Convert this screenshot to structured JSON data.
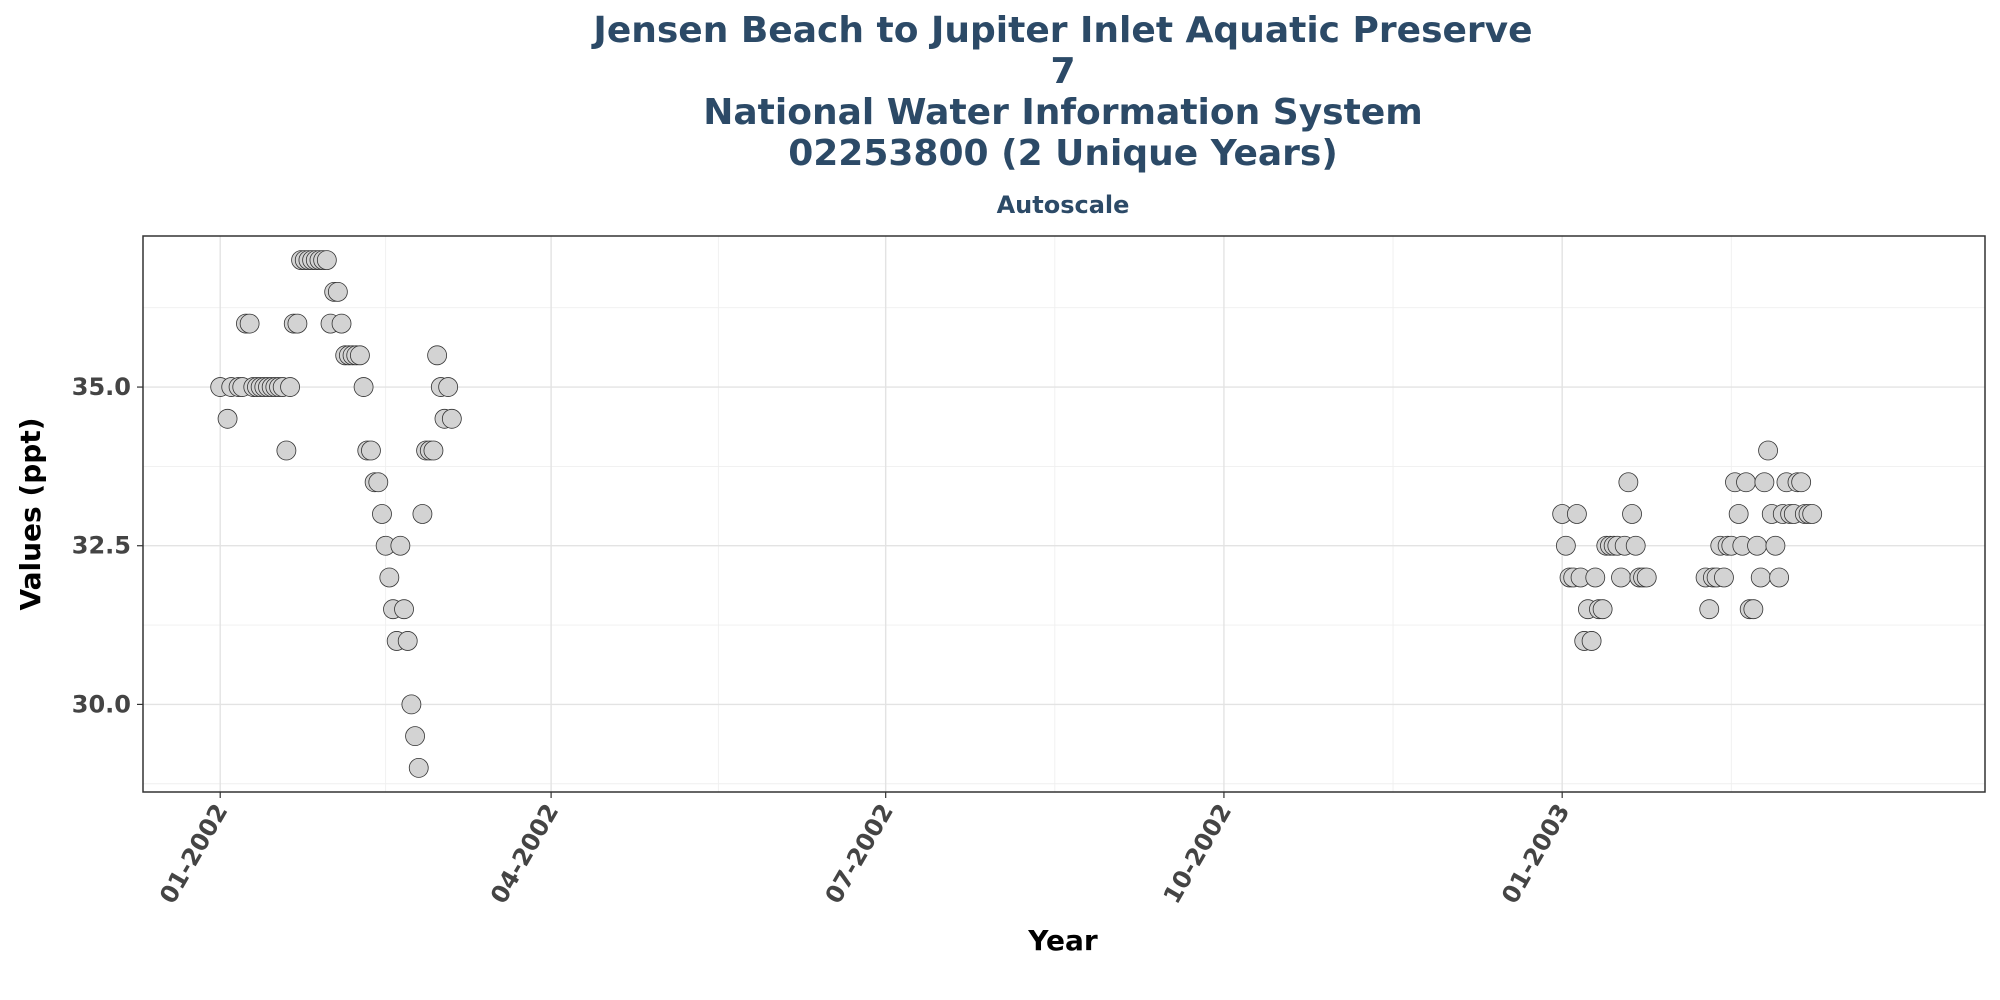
{
  "chart_data": {
    "type": "scatter",
    "title_lines": [
      "Jensen Beach to Jupiter Inlet Aquatic Preserve",
      "7",
      "National Water Information System",
      "02253800 (2 Unique Years)"
    ],
    "subtitle": "Autoscale",
    "xlabel": "Year",
    "ylabel": "Values (ppt)",
    "x_ticks": [
      "2002-01-01",
      "2002-04-01",
      "2002-07-01",
      "2002-10-01",
      "2003-01-01"
    ],
    "x_tick_labels": [
      "01-2002",
      "04-2002",
      "07-2002",
      "10-2002",
      "01-2003"
    ],
    "y_ticks": [
      30.0,
      32.5,
      35.0
    ],
    "y_tick_labels": [
      "30.0",
      "32.5",
      "35.0"
    ],
    "xlim": [
      "2001-12-11",
      "2003-04-26"
    ],
    "ylim": [
      28.62,
      37.38
    ],
    "grid": true,
    "marker_fill": "#d3d3d3",
    "marker_edge": "#333333",
    "points": [
      {
        "x": "2002-01-01",
        "y": 35.0
      },
      {
        "x": "2002-01-03",
        "y": 34.5
      },
      {
        "x": "2002-01-04",
        "y": 35.0
      },
      {
        "x": "2002-01-06",
        "y": 35.0
      },
      {
        "x": "2002-01-07",
        "y": 35.0
      },
      {
        "x": "2002-01-08",
        "y": 36.0
      },
      {
        "x": "2002-01-09",
        "y": 36.0
      },
      {
        "x": "2002-01-10",
        "y": 35.0
      },
      {
        "x": "2002-01-11",
        "y": 35.0
      },
      {
        "x": "2002-01-12",
        "y": 35.0
      },
      {
        "x": "2002-01-13",
        "y": 35.0
      },
      {
        "x": "2002-01-14",
        "y": 35.0
      },
      {
        "x": "2002-01-15",
        "y": 35.0
      },
      {
        "x": "2002-01-16",
        "y": 35.0
      },
      {
        "x": "2002-01-17",
        "y": 35.0
      },
      {
        "x": "2002-01-18",
        "y": 35.0
      },
      {
        "x": "2002-01-19",
        "y": 34.0
      },
      {
        "x": "2002-01-20",
        "y": 35.0
      },
      {
        "x": "2002-01-21",
        "y": 36.0
      },
      {
        "x": "2002-01-22",
        "y": 36.0
      },
      {
        "x": "2002-01-23",
        "y": 37.0
      },
      {
        "x": "2002-01-24",
        "y": 37.0
      },
      {
        "x": "2002-01-25",
        "y": 37.0
      },
      {
        "x": "2002-01-26",
        "y": 37.0
      },
      {
        "x": "2002-01-27",
        "y": 37.0
      },
      {
        "x": "2002-01-28",
        "y": 37.0
      },
      {
        "x": "2002-01-29",
        "y": 37.0
      },
      {
        "x": "2002-01-30",
        "y": 37.0
      },
      {
        "x": "2002-01-31",
        "y": 36.0
      },
      {
        "x": "2002-02-01",
        "y": 36.5
      },
      {
        "x": "2002-02-02",
        "y": 36.5
      },
      {
        "x": "2002-02-03",
        "y": 36.0
      },
      {
        "x": "2002-02-04",
        "y": 35.5
      },
      {
        "x": "2002-02-05",
        "y": 35.5
      },
      {
        "x": "2002-02-06",
        "y": 35.5
      },
      {
        "x": "2002-02-07",
        "y": 35.5
      },
      {
        "x": "2002-02-08",
        "y": 35.5
      },
      {
        "x": "2002-02-09",
        "y": 35.0
      },
      {
        "x": "2002-02-10",
        "y": 34.0
      },
      {
        "x": "2002-02-11",
        "y": 34.0
      },
      {
        "x": "2002-02-12",
        "y": 33.5
      },
      {
        "x": "2002-02-13",
        "y": 33.5
      },
      {
        "x": "2002-02-14",
        "y": 33.0
      },
      {
        "x": "2002-02-15",
        "y": 32.5
      },
      {
        "x": "2002-02-16",
        "y": 32.0
      },
      {
        "x": "2002-02-17",
        "y": 31.5
      },
      {
        "x": "2002-02-18",
        "y": 31.0
      },
      {
        "x": "2002-02-19",
        "y": 32.5
      },
      {
        "x": "2002-02-20",
        "y": 31.5
      },
      {
        "x": "2002-02-21",
        "y": 31.0
      },
      {
        "x": "2002-02-22",
        "y": 30.0
      },
      {
        "x": "2002-02-23",
        "y": 29.5
      },
      {
        "x": "2002-02-24",
        "y": 29.0
      },
      {
        "x": "2002-02-25",
        "y": 33.0
      },
      {
        "x": "2002-02-26",
        "y": 34.0
      },
      {
        "x": "2002-02-27",
        "y": 34.0
      },
      {
        "x": "2002-02-28",
        "y": 34.0
      },
      {
        "x": "2002-03-01",
        "y": 35.5
      },
      {
        "x": "2002-03-02",
        "y": 35.0
      },
      {
        "x": "2002-03-03",
        "y": 34.5
      },
      {
        "x": "2002-03-04",
        "y": 35.0
      },
      {
        "x": "2002-03-05",
        "y": 34.5
      },
      {
        "x": "2003-01-01",
        "y": 33.0
      },
      {
        "x": "2003-01-02",
        "y": 32.5
      },
      {
        "x": "2003-01-03",
        "y": 32.0
      },
      {
        "x": "2003-01-04",
        "y": 32.0
      },
      {
        "x": "2003-01-05",
        "y": 33.0
      },
      {
        "x": "2003-01-06",
        "y": 32.0
      },
      {
        "x": "2003-01-07",
        "y": 31.0
      },
      {
        "x": "2003-01-08",
        "y": 31.5
      },
      {
        "x": "2003-01-09",
        "y": 31.0
      },
      {
        "x": "2003-01-10",
        "y": 32.0
      },
      {
        "x": "2003-01-11",
        "y": 31.5
      },
      {
        "x": "2003-01-12",
        "y": 31.5
      },
      {
        "x": "2003-01-13",
        "y": 32.5
      },
      {
        "x": "2003-01-14",
        "y": 32.5
      },
      {
        "x": "2003-01-15",
        "y": 32.5
      },
      {
        "x": "2003-01-16",
        "y": 32.5
      },
      {
        "x": "2003-01-17",
        "y": 32.0
      },
      {
        "x": "2003-01-18",
        "y": 32.5
      },
      {
        "x": "2003-01-19",
        "y": 33.5
      },
      {
        "x": "2003-01-20",
        "y": 33.0
      },
      {
        "x": "2003-01-21",
        "y": 32.5
      },
      {
        "x": "2003-01-22",
        "y": 32.0
      },
      {
        "x": "2003-01-23",
        "y": 32.0
      },
      {
        "x": "2003-01-24",
        "y": 32.0
      },
      {
        "x": "2003-02-09",
        "y": 32.0
      },
      {
        "x": "2003-02-10",
        "y": 31.5
      },
      {
        "x": "2003-02-11",
        "y": 32.0
      },
      {
        "x": "2003-02-12",
        "y": 32.0
      },
      {
        "x": "2003-02-13",
        "y": 32.5
      },
      {
        "x": "2003-02-14",
        "y": 32.0
      },
      {
        "x": "2003-02-15",
        "y": 32.5
      },
      {
        "x": "2003-02-16",
        "y": 32.5
      },
      {
        "x": "2003-02-17",
        "y": 33.5
      },
      {
        "x": "2003-02-18",
        "y": 33.0
      },
      {
        "x": "2003-02-19",
        "y": 32.5
      },
      {
        "x": "2003-02-20",
        "y": 33.5
      },
      {
        "x": "2003-02-21",
        "y": 31.5
      },
      {
        "x": "2003-02-22",
        "y": 31.5
      },
      {
        "x": "2003-02-23",
        "y": 32.5
      },
      {
        "x": "2003-02-24",
        "y": 32.0
      },
      {
        "x": "2003-02-25",
        "y": 33.5
      },
      {
        "x": "2003-02-26",
        "y": 34.0
      },
      {
        "x": "2003-02-27",
        "y": 33.0
      },
      {
        "x": "2003-02-28",
        "y": 32.5
      },
      {
        "x": "2003-03-01",
        "y": 32.0
      },
      {
        "x": "2003-03-02",
        "y": 33.0
      },
      {
        "x": "2003-03-03",
        "y": 33.5
      },
      {
        "x": "2003-03-04",
        "y": 33.0
      },
      {
        "x": "2003-03-05",
        "y": 33.0
      },
      {
        "x": "2003-03-06",
        "y": 33.5
      },
      {
        "x": "2003-03-07",
        "y": 33.5
      },
      {
        "x": "2003-03-08",
        "y": 33.0
      },
      {
        "x": "2003-03-09",
        "y": 33.0
      },
      {
        "x": "2003-03-10",
        "y": 33.0
      }
    ]
  }
}
